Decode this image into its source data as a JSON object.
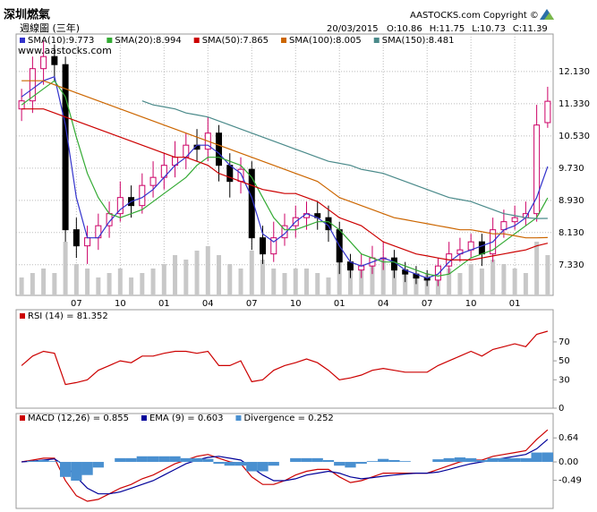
{
  "chart_data": [
    {
      "type": "candlestick",
      "title": "深圳燃氣",
      "subtitle": "週線圖 (三年)",
      "watermark": "www.aastocks.com",
      "copyright": "AASTOCKS.com Copyright ©",
      "date": "20/03/2015",
      "ohlc_labels": [
        "O:10.86",
        "H:11.75",
        "L:10.73",
        "C:11.39"
      ],
      "categories": [
        null,
        null,
        null,
        null,
        null,
        "07",
        null,
        null,
        null,
        "10",
        null,
        null,
        null,
        "01",
        null,
        null,
        null,
        "04",
        null,
        null,
        null,
        "07",
        null,
        null,
        null,
        "10",
        null,
        null,
        null,
        "01",
        null,
        null,
        null,
        "04",
        null,
        null,
        null,
        "07",
        null,
        null,
        null,
        "10",
        null,
        null,
        null,
        "01",
        null,
        null,
        null
      ],
      "open": [
        11.2,
        11.4,
        12.2,
        12.5,
        12.3,
        8.2,
        7.8,
        8.0,
        8.3,
        8.6,
        9.0,
        8.8,
        9.3,
        9.5,
        9.8,
        10.0,
        10.3,
        10.2,
        10.6,
        9.8,
        9.4,
        9.7,
        8.0,
        7.6,
        8.0,
        8.3,
        8.5,
        8.6,
        8.5,
        8.2,
        7.4,
        7.2,
        7.3,
        7.5,
        7.5,
        7.2,
        7.1,
        7.0,
        6.95,
        7.3,
        7.6,
        7.7,
        7.9,
        7.6,
        8.2,
        8.4,
        8.5,
        8.6,
        10.86
      ],
      "high": [
        11.7,
        12.5,
        12.9,
        12.8,
        12.5,
        8.5,
        8.3,
        8.6,
        8.9,
        9.4,
        9.3,
        9.6,
        9.9,
        10.1,
        10.4,
        10.6,
        10.7,
        11.0,
        10.8,
        10.1,
        10.0,
        9.9,
        8.3,
        8.4,
        8.6,
        8.8,
        8.9,
        8.9,
        8.8,
        8.4,
        7.6,
        7.6,
        7.8,
        7.9,
        7.7,
        7.4,
        7.3,
        7.2,
        7.5,
        7.9,
        8.0,
        8.1,
        8.1,
        8.5,
        8.7,
        8.8,
        8.9,
        11.3,
        11.75
      ],
      "low": [
        10.9,
        11.1,
        11.8,
        11.9,
        7.9,
        7.5,
        7.35,
        7.7,
        8.0,
        8.4,
        8.5,
        8.6,
        9.0,
        9.2,
        9.5,
        9.7,
        9.9,
        9.9,
        9.4,
        9.0,
        9.1,
        7.7,
        7.35,
        7.4,
        7.8,
        8.0,
        8.2,
        8.2,
        7.9,
        7.1,
        7.0,
        7.0,
        7.1,
        7.2,
        7.0,
        6.9,
        6.85,
        6.8,
        6.8,
        7.1,
        7.4,
        7.5,
        7.3,
        7.4,
        8.0,
        8.2,
        8.3,
        8.4,
        10.73
      ],
      "close": [
        11.4,
        12.2,
        12.5,
        12.3,
        8.2,
        7.8,
        8.0,
        8.3,
        8.6,
        9.0,
        8.8,
        9.3,
        9.5,
        9.8,
        10.0,
        10.3,
        10.2,
        10.6,
        9.8,
        9.4,
        9.7,
        8.0,
        7.6,
        8.0,
        8.3,
        8.5,
        8.6,
        8.5,
        8.2,
        7.4,
        7.2,
        7.3,
        7.5,
        7.5,
        7.2,
        7.1,
        7.0,
        6.95,
        7.3,
        7.6,
        7.7,
        7.9,
        7.6,
        8.2,
        8.4,
        8.5,
        8.6,
        10.8,
        11.39
      ],
      "up_color": "#cc0066",
      "down_color": "#000000",
      "volume": [
        20,
        25,
        30,
        25,
        60,
        35,
        30,
        20,
        25,
        30,
        20,
        25,
        30,
        35,
        45,
        40,
        50,
        55,
        45,
        35,
        30,
        50,
        40,
        30,
        25,
        30,
        30,
        25,
        20,
        45,
        35,
        30,
        35,
        40,
        30,
        25,
        20,
        25,
        20,
        30,
        25,
        35,
        30,
        40,
        35,
        30,
        25,
        60,
        45
      ],
      "volume_lim": [
        0,
        100
      ],
      "volume_color": "#c8c8c8",
      "series": [
        {
          "name": "SMA(10):9.773",
          "color": "#3333cc",
          "values": [
            11.5,
            11.7,
            11.9,
            12.0,
            10.8,
            9.0,
            8.0,
            8.0,
            8.4,
            8.7,
            8.9,
            9.0,
            9.2,
            9.5,
            9.8,
            10.0,
            10.3,
            10.3,
            10.1,
            9.8,
            9.6,
            9.0,
            8.1,
            7.9,
            8.1,
            8.4,
            8.6,
            8.5,
            8.3,
            7.8,
            7.4,
            7.3,
            7.4,
            7.5,
            7.4,
            7.2,
            7.1,
            7.0,
            7.1,
            7.4,
            7.6,
            7.7,
            7.8,
            7.9,
            8.2,
            8.3,
            8.5,
            9.0,
            9.77
          ]
        },
        {
          "name": "SMA(20):8.994",
          "color": "#33aa33",
          "values": [
            11.3,
            11.5,
            11.7,
            11.9,
            11.5,
            10.5,
            9.6,
            9.0,
            8.6,
            8.5,
            8.6,
            8.7,
            8.9,
            9.1,
            9.3,
            9.5,
            9.8,
            10.0,
            10.0,
            9.9,
            9.8,
            9.5,
            9.0,
            8.5,
            8.2,
            8.2,
            8.3,
            8.4,
            8.4,
            8.2,
            7.9,
            7.6,
            7.5,
            7.4,
            7.4,
            7.3,
            7.2,
            7.1,
            7.05,
            7.1,
            7.3,
            7.5,
            7.6,
            7.7,
            7.9,
            8.1,
            8.3,
            8.5,
            8.99
          ]
        },
        {
          "name": "SMA(50):7.865",
          "color": "#cc0000",
          "values": [
            11.2,
            11.2,
            11.2,
            11.1,
            11.0,
            10.9,
            10.8,
            10.7,
            10.6,
            10.5,
            10.4,
            10.3,
            10.2,
            10.1,
            10.0,
            10.0,
            9.9,
            9.8,
            9.6,
            9.5,
            9.4,
            9.3,
            9.2,
            9.15,
            9.1,
            9.1,
            9.0,
            8.9,
            8.7,
            8.5,
            8.4,
            8.3,
            8.1,
            7.9,
            7.8,
            7.7,
            7.6,
            7.55,
            7.5,
            7.45,
            7.45,
            7.45,
            7.5,
            7.55,
            7.6,
            7.65,
            7.7,
            7.8,
            7.865
          ]
        },
        {
          "name": "SMA(100):8.005",
          "color": "#cc6600",
          "values": [
            11.9,
            11.9,
            11.9,
            11.8,
            11.7,
            11.6,
            11.5,
            11.4,
            11.3,
            11.2,
            11.1,
            11.0,
            10.9,
            10.8,
            10.7,
            10.6,
            10.5,
            10.4,
            10.3,
            10.2,
            10.1,
            10.0,
            9.9,
            9.8,
            9.7,
            9.6,
            9.5,
            9.4,
            9.2,
            9.0,
            8.9,
            8.8,
            8.7,
            8.6,
            8.5,
            8.45,
            8.4,
            8.35,
            8.3,
            8.25,
            8.2,
            8.2,
            8.15,
            8.1,
            8.1,
            8.05,
            8.0,
            8.0,
            8.005
          ]
        },
        {
          "name": "SMA(150):8.481",
          "color": "#4a8a8a",
          "values": [
            null,
            null,
            null,
            null,
            null,
            null,
            null,
            null,
            null,
            null,
            null,
            11.4,
            11.3,
            11.25,
            11.2,
            11.1,
            11.05,
            11.0,
            10.9,
            10.8,
            10.7,
            10.6,
            10.5,
            10.4,
            10.3,
            10.2,
            10.1,
            10.0,
            9.9,
            9.85,
            9.8,
            9.7,
            9.65,
            9.6,
            9.5,
            9.4,
            9.3,
            9.2,
            9.1,
            9.0,
            8.95,
            8.9,
            8.8,
            8.7,
            8.6,
            8.55,
            8.5,
            8.48,
            8.481
          ]
        }
      ],
      "ylim": [
        6.57,
        13.06
      ],
      "yticks": [
        {
          "value": 7.33,
          "label": "7.330"
        },
        {
          "value": 8.13,
          "label": "8.130"
        },
        {
          "value": 8.93,
          "label": "8.930"
        },
        {
          "value": 9.73,
          "label": "9.730"
        },
        {
          "value": 10.53,
          "label": "10.530"
        },
        {
          "value": 11.33,
          "label": "11.330"
        },
        {
          "value": 12.13,
          "label": "12.130"
        }
      ],
      "grid": true,
      "legend": "top-left"
    },
    {
      "type": "line",
      "series": [
        {
          "name": "RSI (14) = 81.352",
          "color": "#cc0000",
          "values": [
            45,
            55,
            60,
            58,
            25,
            27,
            30,
            40,
            45,
            50,
            48,
            55,
            55,
            58,
            60,
            60,
            58,
            60,
            45,
            45,
            50,
            28,
            30,
            40,
            45,
            48,
            52,
            48,
            40,
            30,
            32,
            35,
            40,
            42,
            40,
            38,
            38,
            38,
            45,
            50,
            55,
            60,
            55,
            62,
            65,
            68,
            65,
            78,
            81.352
          ]
        }
      ],
      "ylim": [
        0,
        104
      ],
      "yticks": [
        0,
        30,
        50,
        70
      ],
      "grid": false,
      "legend": "top-left"
    },
    {
      "type": "line",
      "series": [
        {
          "name": "MACD (12,26) = 0.855",
          "color": "#cc0000",
          "values": [
            0,
            0.05,
            0.1,
            0.1,
            -0.5,
            -0.9,
            -1.05,
            -1.0,
            -0.85,
            -0.7,
            -0.6,
            -0.45,
            -0.35,
            -0.2,
            -0.05,
            0.05,
            0.15,
            0.2,
            0.1,
            0,
            -0.05,
            -0.4,
            -0.6,
            -0.6,
            -0.5,
            -0.35,
            -0.25,
            -0.2,
            -0.2,
            -0.4,
            -0.55,
            -0.5,
            -0.4,
            -0.3,
            -0.3,
            -0.3,
            -0.3,
            -0.3,
            -0.2,
            -0.1,
            0,
            0.05,
            0.05,
            0.15,
            0.2,
            0.25,
            0.3,
            0.6,
            0.855
          ]
        },
        {
          "name": "EMA (9) = 0.603",
          "color": "#000099",
          "values": [
            0,
            0.02,
            0.05,
            0.08,
            -0.1,
            -0.4,
            -0.7,
            -0.85,
            -0.85,
            -0.8,
            -0.7,
            -0.6,
            -0.5,
            -0.35,
            -0.2,
            -0.05,
            0.05,
            0.12,
            0.15,
            0.1,
            0.05,
            -0.15,
            -0.35,
            -0.5,
            -0.5,
            -0.45,
            -0.35,
            -0.3,
            -0.25,
            -0.3,
            -0.4,
            -0.45,
            -0.42,
            -0.38,
            -0.35,
            -0.32,
            -0.3,
            -0.3,
            -0.27,
            -0.2,
            -0.12,
            -0.05,
            0,
            0.05,
            0.1,
            0.15,
            0.2,
            0.35,
            0.603
          ]
        },
        {
          "name": "Divergence = 0.252",
          "color": "#4a90d0",
          "type": "bar",
          "values": [
            0,
            0.03,
            0.05,
            0.02,
            -0.4,
            -0.5,
            -0.35,
            -0.15,
            0,
            0.1,
            0.1,
            0.15,
            0.15,
            0.15,
            0.15,
            0.1,
            0.1,
            0.08,
            -0.05,
            -0.1,
            -0.1,
            -0.25,
            -0.25,
            -0.1,
            0,
            0.1,
            0.1,
            0.1,
            0.05,
            -0.1,
            -0.15,
            -0.05,
            0.02,
            0.08,
            0.05,
            0.02,
            0,
            0,
            0.07,
            0.1,
            0.12,
            0.1,
            0.05,
            0.1,
            0.1,
            0.1,
            0.1,
            0.25,
            0.252
          ]
        }
      ],
      "ylim": [
        -1.24,
        1.29
      ],
      "yticks": [
        0.64,
        {
          "value": 0,
          "label": "0.00"
        },
        -0.49
      ],
      "grid": false,
      "legend": "top-left"
    }
  ]
}
